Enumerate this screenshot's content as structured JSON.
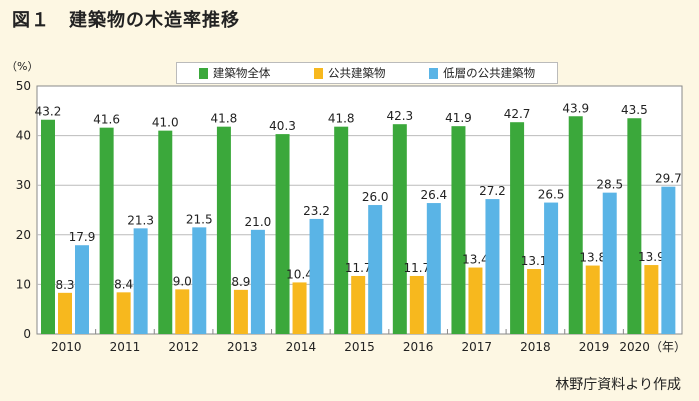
{
  "title": "図１　建築物の木造率推移",
  "unit_label": "（%）",
  "source": "林野庁資料より作成",
  "colors": {
    "series_0": "#3ba83b",
    "series_1": "#f7b81e",
    "series_2": "#5ab4e6",
    "grid": "#bcbcbc",
    "plot_bg": "#ffffff"
  },
  "legend": {
    "items": [
      {
        "label": "建築物全体"
      },
      {
        "label": "公共建築物"
      },
      {
        "label": "低層の公共建築物"
      }
    ]
  },
  "chart_data": {
    "type": "bar",
    "title": "図１　建築物の木造率推移",
    "ylabel": "（%）",
    "x_unit_suffix": "（年）",
    "categories": [
      "2010",
      "2011",
      "2012",
      "2013",
      "2014",
      "2015",
      "2016",
      "2017",
      "2018",
      "2019",
      "2020"
    ],
    "series": [
      {
        "name": "建築物全体",
        "values": [
          43.2,
          41.6,
          41.0,
          41.8,
          40.3,
          41.8,
          42.3,
          41.9,
          42.7,
          43.9,
          43.5
        ]
      },
      {
        "name": "公共建築物",
        "values": [
          8.3,
          8.4,
          9.0,
          8.9,
          10.4,
          11.7,
          11.7,
          13.4,
          13.1,
          13.8,
          13.9
        ]
      },
      {
        "name": "低層の公共建築物",
        "values": [
          17.9,
          21.3,
          21.5,
          21.0,
          23.2,
          26.0,
          26.4,
          27.2,
          26.5,
          28.5,
          29.7
        ]
      }
    ],
    "ylim": [
      0,
      50
    ],
    "yticks": [
      0,
      10,
      20,
      30,
      40,
      50
    ],
    "grid": true,
    "legend_position": "top-center"
  }
}
